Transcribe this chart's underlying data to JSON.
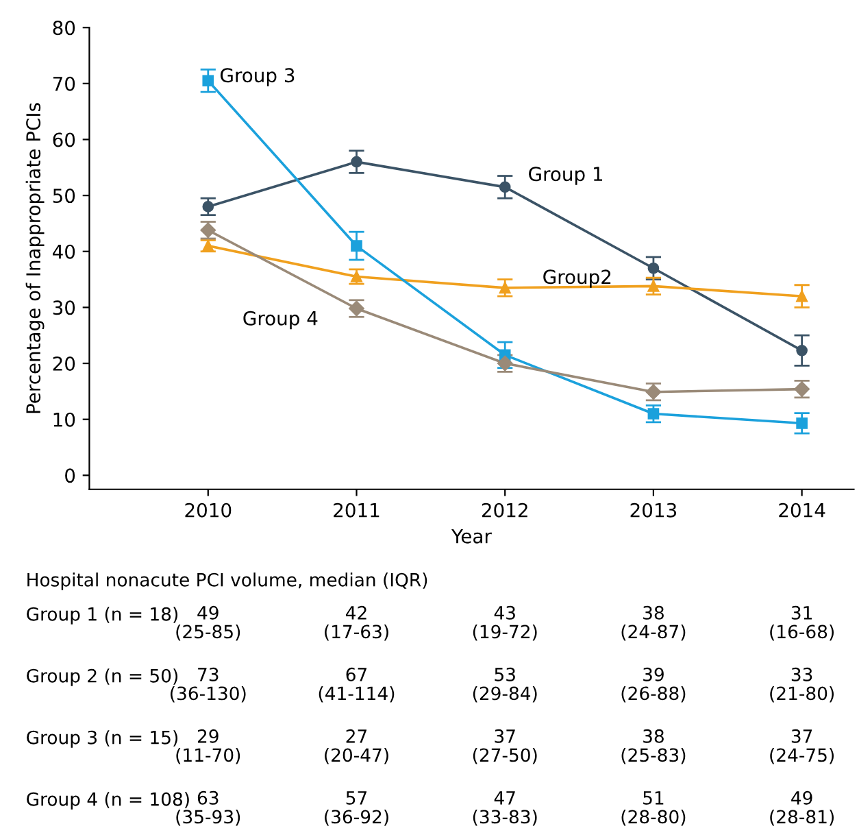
{
  "chart_data": {
    "type": "line",
    "xlabel": "Year",
    "ylabel": "Percentage of Inappropriate PCIs",
    "x": [
      2010,
      2011,
      2012,
      2013,
      2014
    ],
    "series": [
      {
        "name": "Group 1",
        "color": "#3b5366",
        "marker": "circle",
        "values": [
          48,
          56,
          51.5,
          37,
          22.3
        ],
        "errors": [
          1.5,
          2,
          2,
          2,
          2.7
        ]
      },
      {
        "name": "Group2",
        "color": "#f0a01e",
        "marker": "triangle",
        "values": [
          41,
          35.5,
          33.5,
          33.8,
          32
        ],
        "errors": [
          1,
          1.3,
          1.5,
          1.5,
          2
        ]
      },
      {
        "name": "Group 3",
        "color": "#1ba1dc",
        "marker": "square",
        "values": [
          70.5,
          41,
          21.5,
          11,
          9.3
        ],
        "errors": [
          2,
          2.5,
          2.3,
          1.5,
          1.8
        ]
      },
      {
        "name": "Group 4",
        "color": "#9a8a78",
        "marker": "diamond",
        "values": [
          43.8,
          29.8,
          20,
          14.9,
          15.4
        ],
        "errors": [
          1.5,
          1.5,
          1.5,
          1.5,
          1.5
        ]
      }
    ],
    "xlim": [
      2009.2,
      2014.35
    ],
    "ylim": [
      -2.5,
      80
    ],
    "xticks": [
      2010,
      2011,
      2012,
      2013,
      2014
    ],
    "yticks": [
      0,
      10,
      20,
      30,
      40,
      50,
      60,
      70,
      80
    ],
    "grid": false,
    "legend": false,
    "annotations": [
      "Hospital nonacute PCI volume, median (IQR)",
      "Group 1 (n = 18)",
      "49\n(25-85)",
      "42\n(17-63)",
      "43\n(19-72)",
      "38\n(24-87)",
      "31\n(16-68)",
      "Group 2 (n = 50)",
      "73\n(36-130)",
      "67\n(41-114)",
      "53\n(29-84)",
      "39\n(26-88)",
      "33\n(21-80)",
      "Group 3 (n = 15)",
      "29\n(11-70)",
      "27\n(20-47)",
      "37\n(27-50)",
      "38\n(25-83)",
      "37\n(24-75)",
      "Group 4 (n = 108)",
      "63\n(35-93)",
      "57\n(36-92)",
      "47\n(33-83)",
      "51\n(28-80)",
      "49\n(28-81)"
    ]
  }
}
